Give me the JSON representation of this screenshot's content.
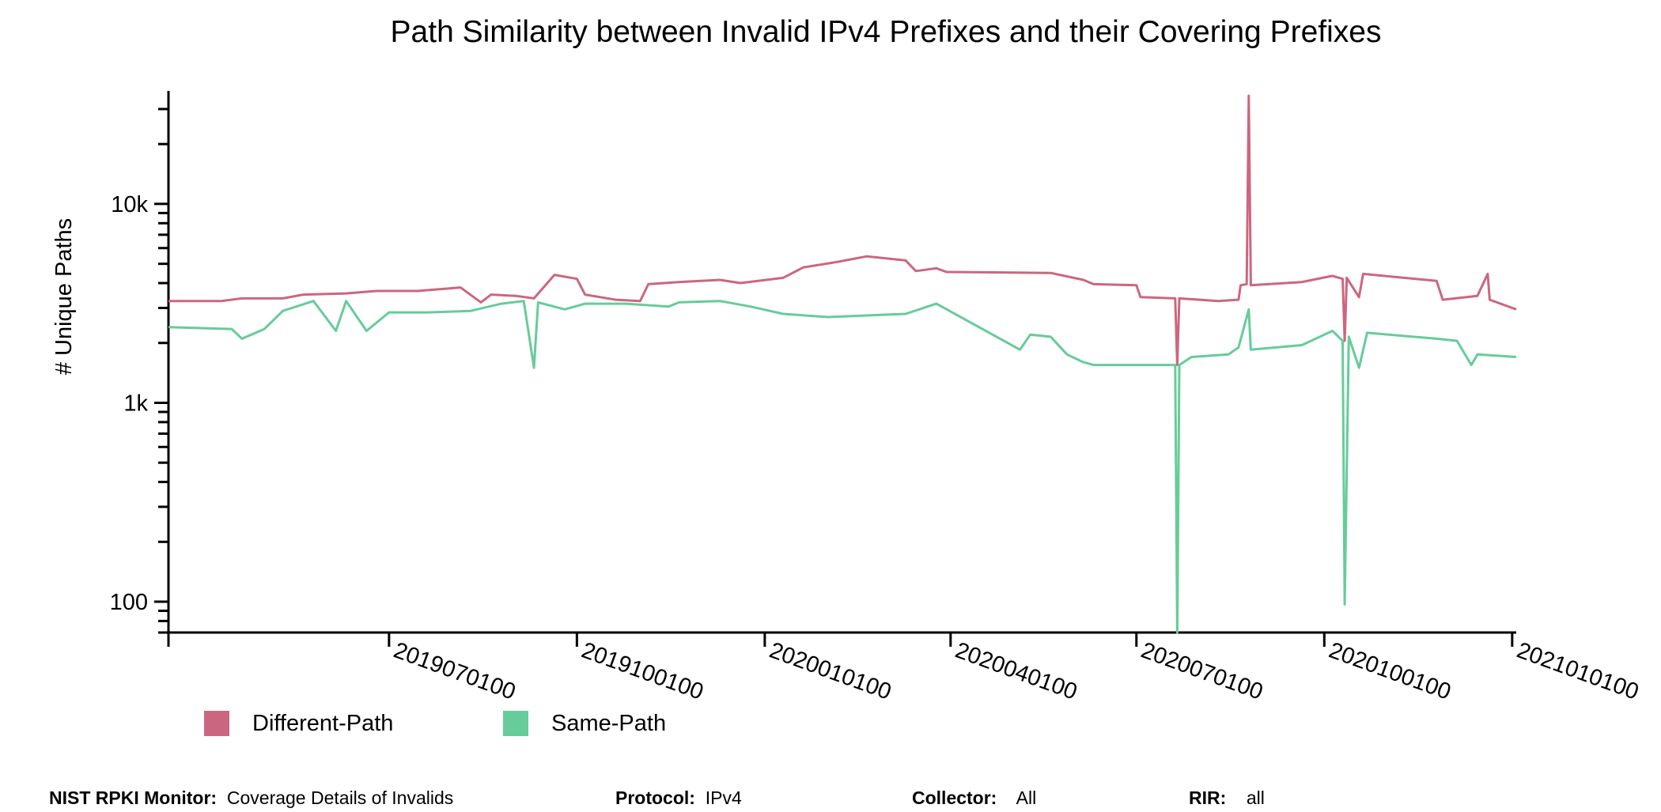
{
  "chart_data": {
    "type": "line",
    "title": "Path Similarity between Invalid IPv4 Prefixes and their Covering Prefixes",
    "xlabel": "",
    "ylabel": "# Unique Paths",
    "y_scale": "log",
    "ylim": [
      70,
      37000
    ],
    "y_ticks": [
      100,
      1000,
      10000
    ],
    "y_tick_labels": [
      "100",
      "1k",
      "10k"
    ],
    "xlim": [
      "2019-03-15",
      "2021-01-03"
    ],
    "x_ticks": [
      "2019-07-01",
      "2019-10-01",
      "2020-01-01",
      "2020-04-01",
      "2020-07-01",
      "2020-10-01",
      "2021-01-01"
    ],
    "x_tick_labels": [
      "2019070100",
      "2019100100",
      "2020010100",
      "2020040100",
      "2020070100",
      "2020100100",
      "2021010100"
    ],
    "grid": false,
    "legend_position": "bottom-left",
    "series": [
      {
        "name": "Different-Path",
        "color": "#cc6680",
        "points": [
          [
            "2019-03-15",
            3250
          ],
          [
            "2019-04-10",
            3250
          ],
          [
            "2019-04-20",
            3350
          ],
          [
            "2019-05-10",
            3350
          ],
          [
            "2019-05-20",
            3500
          ],
          [
            "2019-06-10",
            3550
          ],
          [
            "2019-06-25",
            3650
          ],
          [
            "2019-07-15",
            3650
          ],
          [
            "2019-08-05",
            3800
          ],
          [
            "2019-08-15",
            3200
          ],
          [
            "2019-08-20",
            3500
          ],
          [
            "2019-09-01",
            3450
          ],
          [
            "2019-09-10",
            3350
          ],
          [
            "2019-09-20",
            4400
          ],
          [
            "2019-10-01",
            4200
          ],
          [
            "2019-10-05",
            3500
          ],
          [
            "2019-10-20",
            3300
          ],
          [
            "2019-11-01",
            3250
          ],
          [
            "2019-11-05",
            3950
          ],
          [
            "2019-11-20",
            4050
          ],
          [
            "2019-12-10",
            4150
          ],
          [
            "2019-12-20",
            4000
          ],
          [
            "2020-01-10",
            4250
          ],
          [
            "2020-01-20",
            4800
          ],
          [
            "2020-02-05",
            5100
          ],
          [
            "2020-02-20",
            5450
          ],
          [
            "2020-03-10",
            5200
          ],
          [
            "2020-03-15",
            4600
          ],
          [
            "2020-03-25",
            4750
          ],
          [
            "2020-03-30",
            4550
          ],
          [
            "2020-05-20",
            4500
          ],
          [
            "2020-06-05",
            4150
          ],
          [
            "2020-06-10",
            3950
          ],
          [
            "2020-07-01",
            3900
          ],
          [
            "2020-07-03",
            3400
          ],
          [
            "2020-07-20",
            3350
          ],
          [
            "2020-07-21",
            1550
          ],
          [
            "2020-07-22",
            3350
          ],
          [
            "2020-08-10",
            3250
          ],
          [
            "2020-08-20",
            3300
          ],
          [
            "2020-08-21",
            3900
          ],
          [
            "2020-08-24",
            3950
          ],
          [
            "2020-08-25",
            35000
          ],
          [
            "2020-08-26",
            3900
          ],
          [
            "2020-09-20",
            4050
          ],
          [
            "2020-10-05",
            4350
          ],
          [
            "2020-10-10",
            4200
          ],
          [
            "2020-10-11",
            2050
          ],
          [
            "2020-10-12",
            4250
          ],
          [
            "2020-10-18",
            3400
          ],
          [
            "2020-10-20",
            4450
          ],
          [
            "2020-11-25",
            4100
          ],
          [
            "2020-11-28",
            3300
          ],
          [
            "2020-12-15",
            3450
          ],
          [
            "2020-12-20",
            4450
          ],
          [
            "2020-12-21",
            3300
          ],
          [
            "2021-01-03",
            2950
          ]
        ]
      },
      {
        "name": "Same-Path",
        "color": "#66cc99",
        "points": [
          [
            "2019-03-15",
            2400
          ],
          [
            "2019-04-15",
            2350
          ],
          [
            "2019-04-20",
            2100
          ],
          [
            "2019-05-01",
            2350
          ],
          [
            "2019-05-10",
            2900
          ],
          [
            "2019-05-25",
            3250
          ],
          [
            "2019-06-05",
            2300
          ],
          [
            "2019-06-10",
            3250
          ],
          [
            "2019-06-20",
            2300
          ],
          [
            "2019-07-01",
            2850
          ],
          [
            "2019-07-20",
            2850
          ],
          [
            "2019-08-10",
            2900
          ],
          [
            "2019-08-25",
            3150
          ],
          [
            "2019-09-05",
            3250
          ],
          [
            "2019-09-10",
            1500
          ],
          [
            "2019-09-12",
            3200
          ],
          [
            "2019-09-25",
            2950
          ],
          [
            "2019-10-05",
            3150
          ],
          [
            "2019-10-25",
            3150
          ],
          [
            "2019-11-15",
            3050
          ],
          [
            "2019-11-20",
            3200
          ],
          [
            "2019-12-10",
            3250
          ],
          [
            "2019-12-25",
            3050
          ],
          [
            "2020-01-10",
            2800
          ],
          [
            "2020-02-01",
            2700
          ],
          [
            "2020-02-20",
            2750
          ],
          [
            "2020-03-10",
            2800
          ],
          [
            "2020-03-25",
            3150
          ],
          [
            "2020-05-05",
            1850
          ],
          [
            "2020-05-10",
            2200
          ],
          [
            "2020-05-20",
            2150
          ],
          [
            "2020-05-28",
            1750
          ],
          [
            "2020-06-05",
            1600
          ],
          [
            "2020-06-10",
            1550
          ],
          [
            "2020-07-20",
            1550
          ],
          [
            "2020-07-21",
            70
          ],
          [
            "2020-07-22",
            1550
          ],
          [
            "2020-07-28",
            1700
          ],
          [
            "2020-08-15",
            1750
          ],
          [
            "2020-08-20",
            1900
          ],
          [
            "2020-08-25",
            2950
          ],
          [
            "2020-08-26",
            1850
          ],
          [
            "2020-09-20",
            1950
          ],
          [
            "2020-10-05",
            2300
          ],
          [
            "2020-10-10",
            2050
          ],
          [
            "2020-10-11",
            97
          ],
          [
            "2020-10-13",
            2150
          ],
          [
            "2020-10-18",
            1500
          ],
          [
            "2020-10-22",
            2250
          ],
          [
            "2020-11-25",
            2100
          ],
          [
            "2020-12-05",
            2050
          ],
          [
            "2020-12-12",
            1550
          ],
          [
            "2020-12-15",
            1750
          ],
          [
            "2021-01-03",
            1700
          ]
        ]
      }
    ]
  },
  "legend": [
    {
      "label": "Different-Path",
      "color": "#cc6680"
    },
    {
      "label": "Same-Path",
      "color": "#66cc99"
    }
  ],
  "footer": {
    "monitor_label": "NIST RPKI Monitor:",
    "monitor_value": "Coverage Details of Invalids",
    "protocol_label": "Protocol:",
    "protocol_value": "IPv4",
    "collector_label": "Collector:",
    "collector_value": "All",
    "rir_label": "RIR:",
    "rir_value": "all"
  }
}
